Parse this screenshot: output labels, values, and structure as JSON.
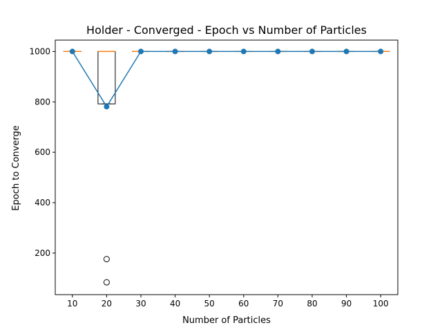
{
  "chart_data": {
    "type": "box-line",
    "title": "Holder - Converged - Epoch vs Number of Particles",
    "xlabel": "Number of Particles",
    "ylabel": "Epoch to Converge",
    "x_ticks": [
      "10",
      "20",
      "30",
      "40",
      "50",
      "60",
      "70",
      "80",
      "90",
      "100"
    ],
    "y_ticks": [
      200,
      400,
      600,
      800,
      1000
    ],
    "ylim": [
      35,
      1045
    ],
    "x": [
      10,
      20,
      30,
      40,
      50,
      60,
      70,
      80,
      90,
      100
    ],
    "mean_series": [
      1000,
      781,
      1000,
      1000,
      1000,
      1000,
      1000,
      1000,
      1000,
      1000
    ],
    "boxes": [
      {
        "x": 10,
        "q1": 1000,
        "median": 1000,
        "q3": 1000,
        "whisker_low": 1000,
        "whisker_high": 1000,
        "outliers": []
      },
      {
        "x": 20,
        "q1": 792,
        "median": 1000,
        "q3": 1000,
        "whisker_low": 792,
        "whisker_high": 1000,
        "outliers": [
          176,
          84
        ]
      },
      {
        "x": 30,
        "q1": 1000,
        "median": 1000,
        "q3": 1000,
        "whisker_low": 1000,
        "whisker_high": 1000,
        "outliers": []
      },
      {
        "x": 40,
        "q1": 1000,
        "median": 1000,
        "q3": 1000,
        "whisker_low": 1000,
        "whisker_high": 1000,
        "outliers": []
      },
      {
        "x": 50,
        "q1": 1000,
        "median": 1000,
        "q3": 1000,
        "whisker_low": 1000,
        "whisker_high": 1000,
        "outliers": []
      },
      {
        "x": 60,
        "q1": 1000,
        "median": 1000,
        "q3": 1000,
        "whisker_low": 1000,
        "whisker_high": 1000,
        "outliers": []
      },
      {
        "x": 70,
        "q1": 1000,
        "median": 1000,
        "q3": 1000,
        "whisker_low": 1000,
        "whisker_high": 1000,
        "outliers": []
      },
      {
        "x": 80,
        "q1": 1000,
        "median": 1000,
        "q3": 1000,
        "whisker_low": 1000,
        "whisker_high": 1000,
        "outliers": []
      },
      {
        "x": 90,
        "q1": 1000,
        "median": 1000,
        "q3": 1000,
        "whisker_low": 1000,
        "whisker_high": 1000,
        "outliers": []
      },
      {
        "x": 100,
        "q1": 1000,
        "median": 1000,
        "q3": 1000,
        "whisker_low": 1000,
        "whisker_high": 1000,
        "outliers": []
      }
    ],
    "grid": false,
    "colors": {
      "line": "#1f77b4",
      "median": "#ff7f0e",
      "box": "#000000"
    }
  }
}
